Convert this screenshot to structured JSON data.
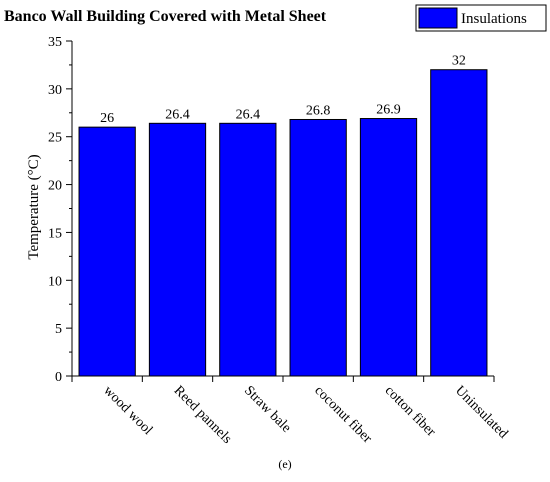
{
  "chart_data": {
    "type": "bar",
    "title": "Banco Wall Building Covered with Metal Sheet",
    "ylabel": "Temperature (°C)",
    "xlabel": "",
    "categories": [
      "wood wool",
      "Reed pannels",
      "Straw bale",
      "coconut fiber",
      "cotton fiber",
      "Uninsulated"
    ],
    "values": [
      26,
      26.4,
      26.4,
      26.8,
      26.9,
      32
    ],
    "value_labels": [
      "26",
      "26.4",
      "26.4",
      "26.8",
      "26.9",
      "32"
    ],
    "ylim": [
      0,
      35
    ],
    "yticks": [
      "0",
      "5",
      "10",
      "15",
      "20",
      "25",
      "30",
      "35"
    ],
    "legend": {
      "entries": [
        "Insulations"
      ],
      "placement": "top-right"
    },
    "bar_color": "#0000ff",
    "bar_edge_color": "#000000",
    "grid": false,
    "caption": "(e)"
  }
}
